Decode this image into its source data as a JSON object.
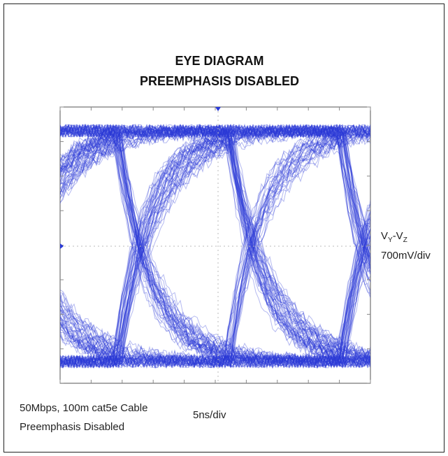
{
  "title_lines": [
    "EYE DIAGRAM",
    "PREEMPHASIS DISABLED"
  ],
  "y_label": {
    "parts": [
      "V",
      "Y",
      "-V",
      "Z"
    ],
    "scale": "700mV/div"
  },
  "notes": [
    "50Mbps, 100m cat5e Cable",
    "Preemphasis Disabled"
  ],
  "x_scale": "5ns/div"
}
